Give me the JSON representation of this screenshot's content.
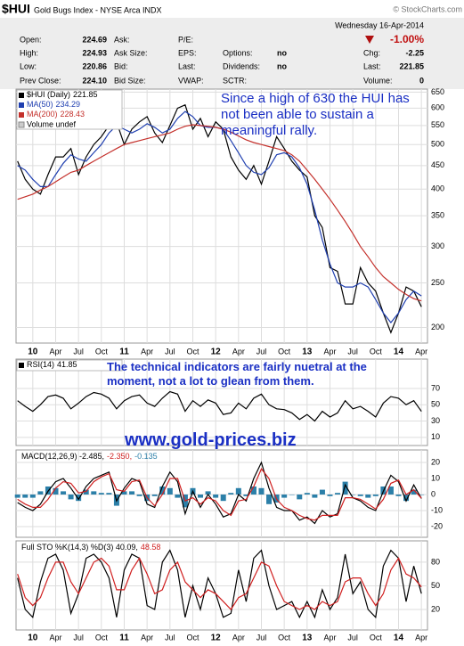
{
  "header": {
    "symbol": "$HUI",
    "name": "Gold Bugs Index - NYSE Arca INDX",
    "copyright": "© StockCharts.com",
    "date": "Wednesday 16-Apr-2014",
    "change": "-1.00%",
    "rows": [
      [
        {
          "label": "Open:",
          "value": "224.69"
        },
        {
          "label": "Ask:"
        },
        {
          "label": "P/E:"
        },
        null,
        null
      ],
      [
        {
          "label": "High:",
          "value": "224.93"
        },
        {
          "label": "Ask Size:"
        },
        {
          "label": "EPS:"
        },
        {
          "label": "Options:",
          "value": "no"
        },
        {
          "label": "Chg:",
          "value": "-2.25"
        }
      ],
      [
        {
          "label": "Low:",
          "value": "220.86"
        },
        {
          "label": "Bid:"
        },
        {
          "label": "Last:"
        },
        {
          "label": "Dividends:",
          "value": "no"
        },
        {
          "label": "Last:",
          "value": "221.85"
        }
      ],
      [
        {
          "label": "Prev Close:",
          "value": "224.10"
        },
        {
          "label": "Bid Size:"
        },
        {
          "label": "VWAP:"
        },
        {
          "label": "SCTR:"
        },
        {
          "label": "Volume:",
          "value": "0"
        }
      ]
    ]
  },
  "chart_data": [
    {
      "type": "line",
      "yscale": "log",
      "grid": true,
      "x": [
        -2,
        -1,
        0,
        1,
        2,
        3,
        4,
        5,
        6,
        7,
        8,
        9,
        10,
        11,
        12,
        13,
        14,
        15,
        16,
        17,
        18,
        19,
        20,
        21,
        22,
        23,
        24,
        25,
        26,
        27,
        28,
        29,
        30,
        31,
        32,
        33,
        34,
        35,
        36,
        37,
        38,
        39,
        40,
        41,
        42,
        43,
        44,
        45,
        46,
        47,
        48,
        49,
        50,
        51
      ],
      "xlim": [
        -2.2,
        51.8
      ],
      "xticks": [
        {
          "value": 0,
          "label": "10"
        },
        {
          "value": 3,
          "label": "Apr"
        },
        {
          "value": 6,
          "label": "Jul"
        },
        {
          "value": 9,
          "label": "Oct"
        },
        {
          "value": 12,
          "label": "11"
        },
        {
          "value": 15,
          "label": "Apr"
        },
        {
          "value": 18,
          "label": "Jul"
        },
        {
          "value": 21,
          "label": "Oct"
        },
        {
          "value": 24,
          "label": "12"
        },
        {
          "value": 27,
          "label": "Apr"
        },
        {
          "value": 30,
          "label": "Jul"
        },
        {
          "value": 33,
          "label": "Oct"
        },
        {
          "value": 36,
          "label": "13"
        },
        {
          "value": 39,
          "label": "Apr"
        },
        {
          "value": 42,
          "label": "Jul"
        },
        {
          "value": 45,
          "label": "Oct"
        },
        {
          "value": 48,
          "label": "14"
        },
        {
          "value": 51,
          "label": "Apr"
        }
      ],
      "ylim": [
        185,
        660
      ],
      "yticks": [
        200,
        250,
        300,
        350,
        400,
        450,
        500,
        550,
        600,
        650
      ],
      "series": [
        {
          "name": "$HUI (Daily)",
          "color": "#000000",
          "values": [
            460,
            420,
            400,
            390,
            430,
            470,
            470,
            490,
            430,
            470,
            500,
            520,
            550,
            560,
            500,
            540,
            560,
            575,
            530,
            505,
            550,
            600,
            610,
            540,
            570,
            520,
            560,
            540,
            470,
            440,
            420,
            450,
            410,
            460,
            520,
            490,
            460,
            440,
            425,
            350,
            330,
            270,
            265,
            225,
            225,
            270,
            250,
            240,
            215,
            195,
            215,
            245,
            240,
            221.85
          ]
        },
        {
          "name": "MA(50)",
          "color": "#1f3fb0",
          "values": [
            450,
            440,
            420,
            405,
            405,
            430,
            455,
            475,
            465,
            460,
            480,
            500,
            530,
            550,
            540,
            530,
            540,
            555,
            545,
            530,
            540,
            570,
            590,
            575,
            550,
            545,
            545,
            540,
            510,
            480,
            450,
            435,
            430,
            445,
            475,
            480,
            470,
            445,
            410,
            360,
            310,
            275,
            250,
            245,
            245,
            250,
            245,
            230,
            215,
            205,
            215,
            230,
            240,
            234.29
          ]
        },
        {
          "name": "MA(200)",
          "color": "#c4302b",
          "values": [
            380,
            385,
            390,
            398,
            405,
            415,
            425,
            435,
            440,
            450,
            460,
            470,
            480,
            490,
            500,
            505,
            510,
            515,
            520,
            525,
            530,
            540,
            548,
            552,
            550,
            548,
            545,
            540,
            532,
            522,
            512,
            505,
            500,
            495,
            490,
            485,
            475,
            460,
            440,
            420,
            400,
            380,
            360,
            340,
            320,
            300,
            285,
            270,
            258,
            250,
            242,
            236,
            231,
            228.43
          ]
        }
      ],
      "volume_legend": "Volume undef",
      "annotation": "Since a high of 630 the HUI has not been able to sustain a meaningful rally."
    },
    {
      "type": "line",
      "grid": true,
      "x": [
        -2,
        -1,
        0,
        1,
        2,
        3,
        4,
        5,
        6,
        7,
        8,
        9,
        10,
        11,
        12,
        13,
        14,
        15,
        16,
        17,
        18,
        19,
        20,
        21,
        22,
        23,
        24,
        25,
        26,
        27,
        28,
        29,
        30,
        31,
        32,
        33,
        34,
        35,
        36,
        37,
        38,
        39,
        40,
        41,
        42,
        43,
        44,
        45,
        46,
        47,
        48,
        49,
        50,
        51
      ],
      "xlim": [
        -2.2,
        51.8
      ],
      "ylim": [
        0,
        106
      ],
      "yticks": [
        10,
        30,
        50,
        70
      ],
      "series": [
        {
          "name": "RSI(14)",
          "color": "#000000",
          "values": [
            55,
            48,
            42,
            50,
            60,
            62,
            58,
            45,
            52,
            60,
            65,
            63,
            58,
            45,
            55,
            60,
            62,
            52,
            48,
            58,
            66,
            63,
            42,
            55,
            48,
            56,
            52,
            38,
            40,
            52,
            45,
            58,
            63,
            50,
            45,
            44,
            40,
            32,
            38,
            30,
            42,
            35,
            40,
            55,
            45,
            48,
            42,
            35,
            52,
            60,
            58,
            50,
            55,
            41.85
          ]
        }
      ],
      "annotation": "The technical indicators are fairly nuetral at the moment, not a lot to glean from them.",
      "website": "www.gold-prices.biz"
    },
    {
      "type": "line",
      "grid": true,
      "x": [
        -2,
        -1,
        0,
        1,
        2,
        3,
        4,
        5,
        6,
        7,
        8,
        9,
        10,
        11,
        12,
        13,
        14,
        15,
        16,
        17,
        18,
        19,
        20,
        21,
        22,
        23,
        24,
        25,
        26,
        27,
        28,
        29,
        30,
        31,
        32,
        33,
        34,
        35,
        36,
        37,
        38,
        39,
        40,
        41,
        42,
        43,
        44,
        45,
        46,
        47,
        48,
        49,
        50,
        51
      ],
      "xlim": [
        -2.2,
        51.8
      ],
      "ylim": [
        -26.7,
        27.8
      ],
      "yticks": [
        -20,
        -10,
        0,
        10,
        20
      ],
      "series": [
        {
          "color": "#2b7fa8",
          "style": "bar",
          "values": [
            -2,
            -2,
            -2,
            2,
            5,
            4,
            2,
            -3,
            -4,
            3,
            2,
            1,
            1,
            -7,
            2,
            2,
            -1,
            -4,
            -1,
            5,
            4,
            -2,
            -8,
            4,
            -2,
            2,
            -2,
            -4,
            1,
            4,
            -1,
            5,
            4,
            -6,
            -5,
            -2,
            0,
            -3,
            1,
            -2,
            3,
            -1,
            1,
            8,
            0,
            -1,
            -2,
            -1,
            5,
            5,
            -1,
            -4,
            3,
            -0.135
          ]
        },
        {
          "color": "#000000",
          "values": [
            -5,
            -8,
            -10,
            -6,
            2,
            8,
            10,
            4,
            -3,
            5,
            10,
            12,
            14,
            -4,
            4,
            10,
            8,
            -6,
            -8,
            5,
            14,
            8,
            -12,
            2,
            -8,
            0,
            -6,
            -14,
            -12,
            0,
            -4,
            10,
            20,
            4,
            -8,
            -10,
            -10,
            -16,
            -14,
            -18,
            -10,
            -14,
            -12,
            6,
            -2,
            -4,
            -8,
            -10,
            2,
            12,
            8,
            -4,
            6,
            -2.485
          ]
        },
        {
          "color": "#d01f1f",
          "values": [
            -3,
            -6,
            -8,
            -8,
            -3,
            4,
            8,
            7,
            1,
            2,
            8,
            11,
            13,
            3,
            2,
            8,
            9,
            -2,
            -7,
            0,
            10,
            10,
            -4,
            -2,
            -6,
            -2,
            -4,
            -10,
            -13,
            -4,
            -3,
            5,
            16,
            10,
            -3,
            -8,
            -10,
            -13,
            -15,
            -16,
            -13,
            -13,
            -13,
            -2,
            -2,
            -3,
            -6,
            -9,
            -3,
            7,
            9,
            0,
            3,
            -2.35
          ]
        }
      ],
      "legend_parts": [
        "-0.135",
        "MACD(12,26,9) -2.485,",
        "-2.350,"
      ]
    },
    {
      "type": "line",
      "grid": true,
      "x": [
        -2,
        -1,
        0,
        1,
        2,
        3,
        4,
        5,
        6,
        7,
        8,
        9,
        10,
        11,
        12,
        13,
        14,
        15,
        16,
        17,
        18,
        19,
        20,
        21,
        22,
        23,
        24,
        25,
        26,
        27,
        28,
        29,
        30,
        31,
        32,
        33,
        34,
        35,
        36,
        37,
        38,
        39,
        40,
        41,
        42,
        43,
        44,
        45,
        46,
        47,
        48,
        49,
        50,
        51
      ],
      "xlim": [
        -2.2,
        51.8
      ],
      "xticks": [
        {
          "value": 0,
          "label": "10"
        },
        {
          "value": 3,
          "label": "Apr"
        },
        {
          "value": 6,
          "label": "Jul"
        },
        {
          "value": 9,
          "label": "Oct"
        },
        {
          "value": 12,
          "label": "11"
        },
        {
          "value": 15,
          "label": "Apr"
        },
        {
          "value": 18,
          "label": "Jul"
        },
        {
          "value": 21,
          "label": "Oct"
        },
        {
          "value": 24,
          "label": "12"
        },
        {
          "value": 27,
          "label": "Apr"
        },
        {
          "value": 30,
          "label": "Jul"
        },
        {
          "value": 33,
          "label": "Oct"
        },
        {
          "value": 36,
          "label": "13"
        },
        {
          "value": 39,
          "label": "Apr"
        },
        {
          "value": 42,
          "label": "Jul"
        },
        {
          "value": 45,
          "label": "Oct"
        },
        {
          "value": 48,
          "label": "14"
        },
        {
          "value": 51,
          "label": "Apr"
        }
      ],
      "ylim": [
        -6,
        107
      ],
      "yticks": [
        20,
        50,
        80
      ],
      "series": [
        {
          "color": "#000000",
          "values": [
            60,
            20,
            10,
            55,
            85,
            90,
            70,
            15,
            40,
            85,
            90,
            80,
            60,
            10,
            70,
            90,
            85,
            25,
            20,
            80,
            95,
            70,
            10,
            50,
            20,
            60,
            40,
            10,
            15,
            70,
            30,
            85,
            95,
            50,
            20,
            25,
            30,
            10,
            30,
            10,
            45,
            20,
            35,
            90,
            40,
            55,
            20,
            10,
            75,
            95,
            85,
            30,
            75,
            40.09
          ]
        },
        {
          "color": "#d01f1f",
          "values": [
            65,
            35,
            25,
            35,
            60,
            80,
            80,
            55,
            40,
            60,
            80,
            85,
            75,
            45,
            45,
            70,
            85,
            65,
            40,
            45,
            70,
            80,
            55,
            45,
            35,
            45,
            40,
            30,
            20,
            35,
            40,
            60,
            80,
            75,
            50,
            30,
            25,
            20,
            25,
            20,
            30,
            25,
            30,
            55,
            60,
            60,
            40,
            25,
            40,
            70,
            85,
            65,
            60,
            48.58
          ]
        }
      ],
      "legend_parts": [
        "Full STO %K(14,3) %D(3) 40.09,",
        "48.58"
      ]
    }
  ]
}
